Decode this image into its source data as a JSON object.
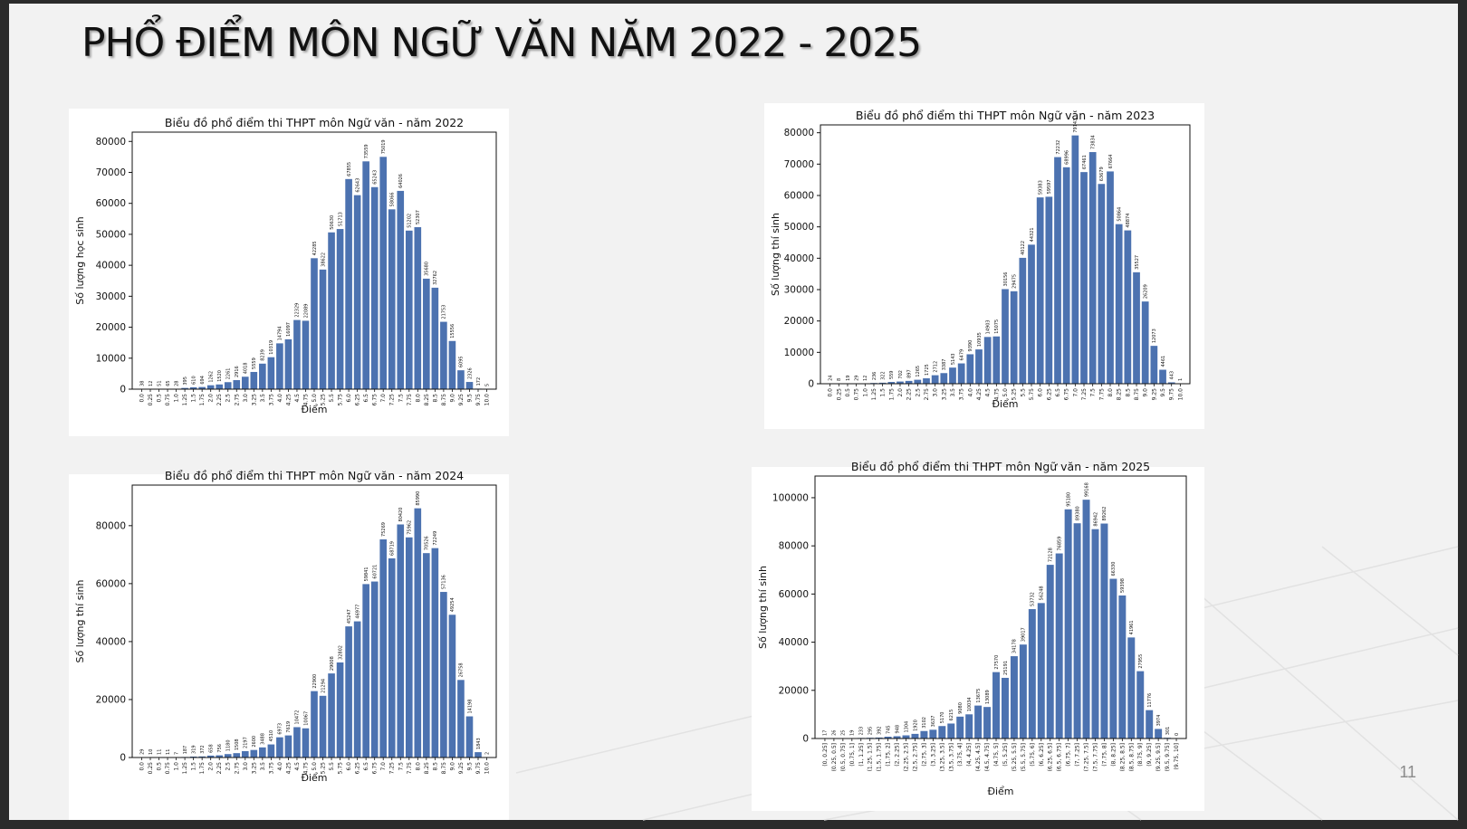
{
  "slide": {
    "title": "PHỔ ĐIỂM MÔN NGỮ VĂN NĂM 2022 - 2025",
    "page_number": "11"
  },
  "chart_data": [
    {
      "type": "bar",
      "title": "Biểu đồ phổ điểm thi THPT môn Ngữ văn - năm 2022",
      "xlabel": "Điểm",
      "ylabel": "Số lượng học sinh",
      "yticks": [
        0,
        10000,
        20000,
        30000,
        40000,
        50000,
        60000,
        70000,
        80000
      ],
      "ylim": [
        0,
        83000
      ],
      "color": "#4c72b0",
      "categories": [
        "0.0",
        "0.25",
        "0.5",
        "0.75",
        "1.0",
        "1.25",
        "1.5",
        "1.75",
        "2.0",
        "2.25",
        "2.5",
        "2.75",
        "3.0",
        "3.25",
        "3.5",
        "3.75",
        "4.0",
        "4.25",
        "4.5",
        "4.75",
        "5.0",
        "5.25",
        "5.5",
        "5.75",
        "6.0",
        "6.25",
        "6.5",
        "6.75",
        "7.0",
        "7.25",
        "7.5",
        "7.75",
        "8.0",
        "8.25",
        "8.5",
        "8.75",
        "9.0",
        "9.25",
        "9.5",
        "9.75",
        "10.0"
      ],
      "values": [
        38,
        12,
        51,
        65,
        28,
        395,
        610,
        694,
        1262,
        1520,
        2261,
        2916,
        4018,
        5559,
        8239,
        10319,
        14794,
        16097,
        22329,
        22089,
        42285,
        38622,
        50630,
        51713,
        67855,
        62643,
        73559,
        65243,
        75019,
        58066,
        64026,
        51202,
        52307,
        35680,
        32762,
        21753,
        15556,
        6095,
        2326,
        172,
        5
      ]
    },
    {
      "type": "bar",
      "title": "Biểu đồ phổ điểm thi THPT môn Ngữ văn - năm 2023",
      "xlabel": "Điểm",
      "ylabel": "Số lượng thí sinh",
      "yticks": [
        0,
        10000,
        20000,
        30000,
        40000,
        50000,
        60000,
        70000,
        80000
      ],
      "ylim": [
        0,
        82500
      ],
      "color": "#4c72b0",
      "categories": [
        "0.0",
        "0.25",
        "0.5",
        "0.75",
        "1.0",
        "1.25",
        "1.5",
        "1.75",
        "2.0",
        "2.25",
        "2.5",
        "2.75",
        "3.0",
        "3.25",
        "3.5",
        "3.75",
        "4.0",
        "4.25",
        "4.5",
        "4.75",
        "5.0",
        "5.25",
        "5.5",
        "5.75",
        "6.0",
        "6.25",
        "6.5",
        "6.75",
        "7.0",
        "7.25",
        "7.5",
        "7.75",
        "8.0",
        "8.25",
        "8.5",
        "8.75",
        "9.0",
        "9.25",
        "9.5",
        "9.75",
        "10.0"
      ],
      "values": [
        24,
        8,
        19,
        29,
        12,
        236,
        322,
        559,
        702,
        897,
        1265,
        1725,
        2712,
        3387,
        5143,
        6479,
        9390,
        10935,
        14903,
        15075,
        30156,
        29475,
        40122,
        44321,
        59383,
        59597,
        72232,
        68996,
        79143,
        67461,
        73834,
        63679,
        67664,
        50864,
        48874,
        35527,
        26209,
        12073,
        4461,
        443,
        1
      ]
    },
    {
      "type": "bar",
      "title": "Biểu đồ phổ điểm thi THPT môn Ngữ văn - năm 2024",
      "xlabel": "Điểm",
      "ylabel": "Số lượng thí sinh",
      "yticks": [
        0,
        20000,
        40000,
        60000,
        80000
      ],
      "ylim": [
        0,
        94000
      ],
      "color": "#4c72b0",
      "categories": [
        "0.0",
        "0.25",
        "0.5",
        "0.75",
        "1.0",
        "1.25",
        "1.5",
        "1.75",
        "2.0",
        "2.25",
        "2.5",
        "2.75",
        "3.0",
        "3.25",
        "3.5",
        "3.75",
        "4.0",
        "4.25",
        "4.5",
        "4.75",
        "5.0",
        "5.25",
        "5.5",
        "5.75",
        "6.0",
        "6.25",
        "6.5",
        "6.75",
        "7.0",
        "7.25",
        "7.5",
        "7.75",
        "8.0",
        "8.25",
        "8.5",
        "8.75",
        "9.0",
        "9.25",
        "9.5",
        "9.75",
        "10.0"
      ],
      "values": [
        29,
        10,
        11,
        11,
        7,
        187,
        319,
        372,
        658,
        756,
        1180,
        1508,
        2197,
        2600,
        3488,
        4510,
        6973,
        7619,
        10472,
        10067,
        22900,
        21294,
        29008,
        32802,
        45247,
        46977,
        59841,
        60721,
        75269,
        68719,
        80420,
        75962,
        85990,
        70526,
        72249,
        57136,
        49254,
        26758,
        14198,
        1843,
        2
      ]
    },
    {
      "type": "bar",
      "title": "Biểu đồ phổ điểm thi THPT môn Ngữ văn - năm 2025",
      "xlabel": "Điểm",
      "ylabel": "Số lượng thí sinh",
      "yticks": [
        0,
        20000,
        40000,
        60000,
        80000,
        100000
      ],
      "ylim": [
        0,
        109000
      ],
      "color": "#4c72b0",
      "categories": [
        "(0, 0.25]",
        "(0.25, 0.5]",
        "(0.5, 0.75]",
        "(0.75, 1]",
        "(1, 1.25]",
        "(1.25, 1.5]",
        "(1.5, 1.75]",
        "(1.75, 2]",
        "(2, 2.25]",
        "(2.25, 2.5]",
        "(2.5, 2.75]",
        "(2.75, 3]",
        "(3, 3.25]",
        "(3.25, 3.5]",
        "(3.5, 3.75]",
        "(3.75, 4]",
        "(4, 4.25]",
        "(4.25, 4.5]",
        "(4.5, 4.75]",
        "(4.75, 5]",
        "(5, 5.25]",
        "(5.25, 5.5]",
        "(5.5, 5.75]",
        "(5.75, 6]",
        "(6, 6.25]",
        "(6.25, 6.5]",
        "(6.5, 6.75]",
        "(6.75, 7]",
        "(7, 7.25]",
        "(7.25, 7.5]",
        "(7.5, 7.75]",
        "(7.75, 8]",
        "(8, 8.25]",
        "(8.25, 8.5]",
        "(8.5, 8.75]",
        "(8.75, 9]",
        "(9, 9.25]",
        "(9.25, 9.5]",
        "(9.5, 9.75]",
        "(9.75, 10]"
      ],
      "values": [
        17,
        26,
        25,
        19,
        233,
        295,
        392,
        745,
        948,
        1304,
        1920,
        3102,
        3637,
        5170,
        6215,
        9080,
        10034,
        13675,
        13089,
        27570,
        25191,
        34178,
        39017,
        53732,
        56248,
        72128,
        76859,
        95180,
        89380,
        99168,
        86942,
        89262,
        66330,
        59398,
        41961,
        27955,
        11776,
        3974,
        301,
        0
      ]
    }
  ]
}
